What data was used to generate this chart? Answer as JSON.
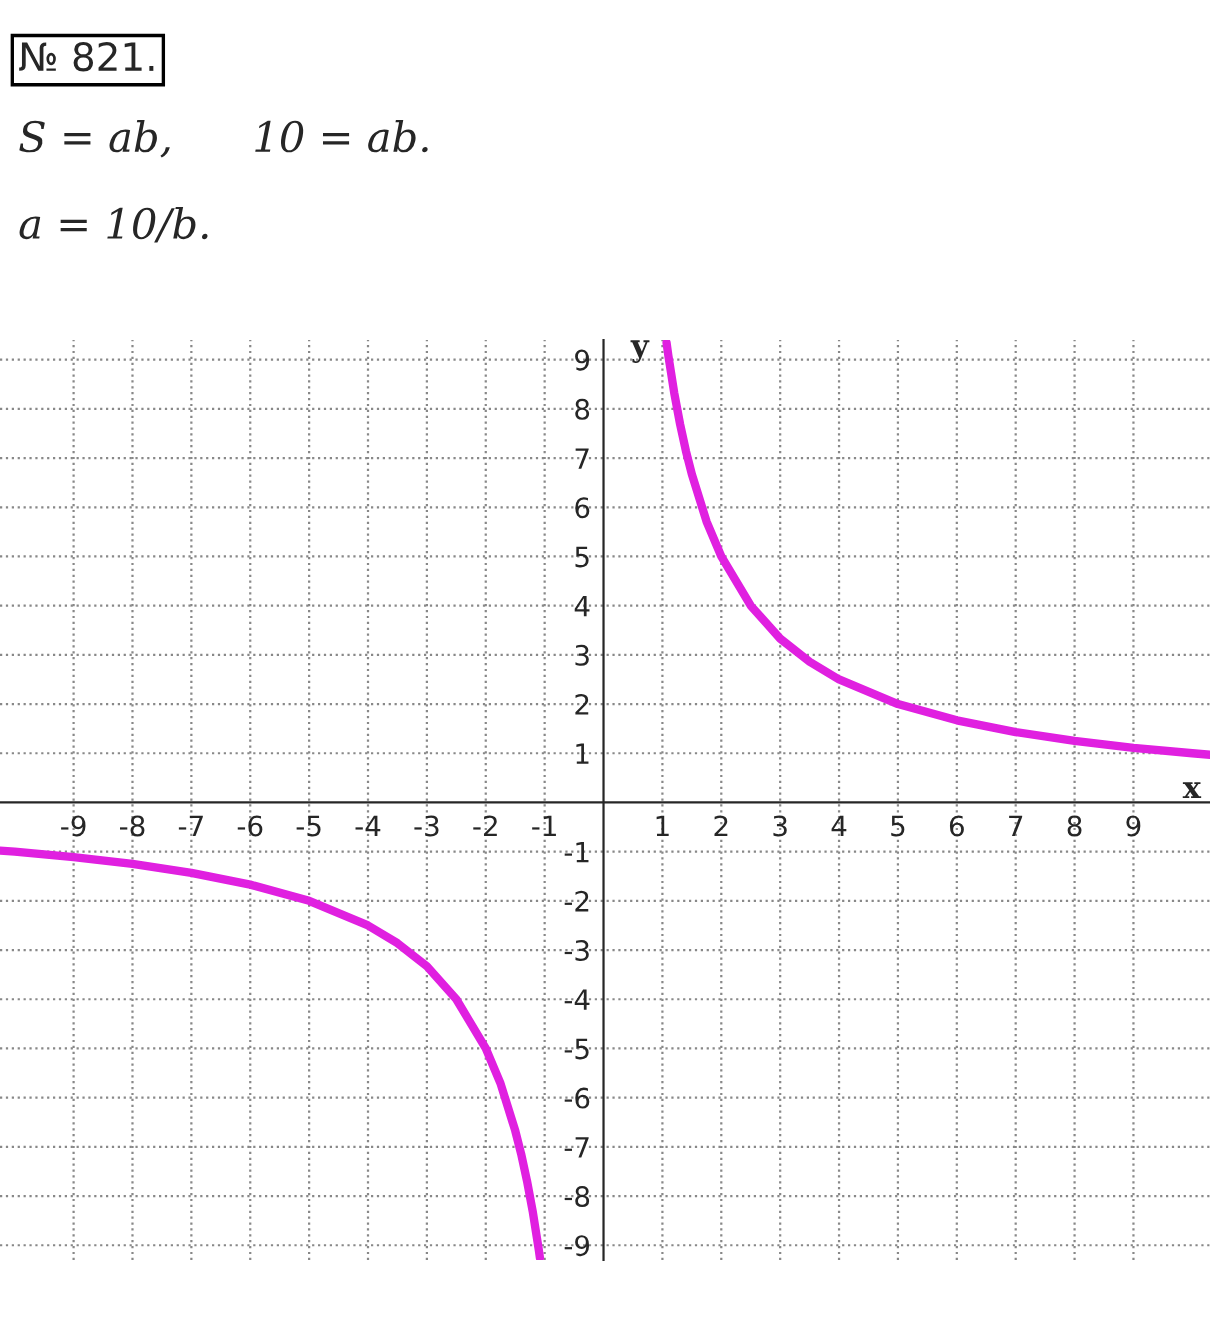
{
  "chart_data": {
    "type": "line",
    "title": "№ 821.",
    "annotations": [
      "S = ab,      10 = ab.",
      "a = 10/b."
    ],
    "xlabel": "x",
    "ylabel": "y",
    "series": [
      {
        "color": "#e020e0",
        "x": [
          1.07,
          1.1,
          1.2,
          1.3,
          1.4,
          1.5,
          1.75,
          2,
          2.5,
          3,
          3.5,
          4,
          5,
          6,
          7,
          8,
          9,
          10,
          10.3
        ],
        "values": [
          9.35,
          9.09,
          8.33,
          7.69,
          7.14,
          6.67,
          5.71,
          5,
          4,
          3.33,
          2.86,
          2.5,
          2,
          1.67,
          1.43,
          1.25,
          1.11,
          1,
          0.97
        ]
      },
      {
        "color": "#e020e0",
        "x": [
          -10.25,
          -10,
          -9,
          -8,
          -7,
          -6,
          -5,
          -4,
          -3.5,
          -3,
          -2.5,
          -2,
          -1.75,
          -1.5,
          -1.4,
          -1.3,
          -1.2,
          -1.1,
          -1.08
        ],
        "values": [
          -0.98,
          -1,
          -1.11,
          -1.25,
          -1.43,
          -1.67,
          -2,
          -2.5,
          -2.86,
          -3.33,
          -4,
          -5,
          -5.71,
          -6.67,
          -7.14,
          -7.69,
          -8.33,
          -9.09,
          -9.26
        ]
      }
    ],
    "xlim": [
      -10.25,
      10.3
    ],
    "ylim": [
      -9.3,
      9.4
    ],
    "xticks": [
      -9,
      -8,
      -7,
      -6,
      -5,
      -4,
      -3,
      -2,
      -1,
      1,
      2,
      3,
      4,
      5,
      6,
      7,
      8,
      9
    ],
    "yticks": [
      -9,
      -8,
      -7,
      -6,
      -5,
      -4,
      -3,
      -2,
      -1,
      1,
      2,
      3,
      4,
      5,
      6,
      7,
      8,
      9
    ],
    "grid": true,
    "line_style": "solid",
    "marker": "none"
  }
}
